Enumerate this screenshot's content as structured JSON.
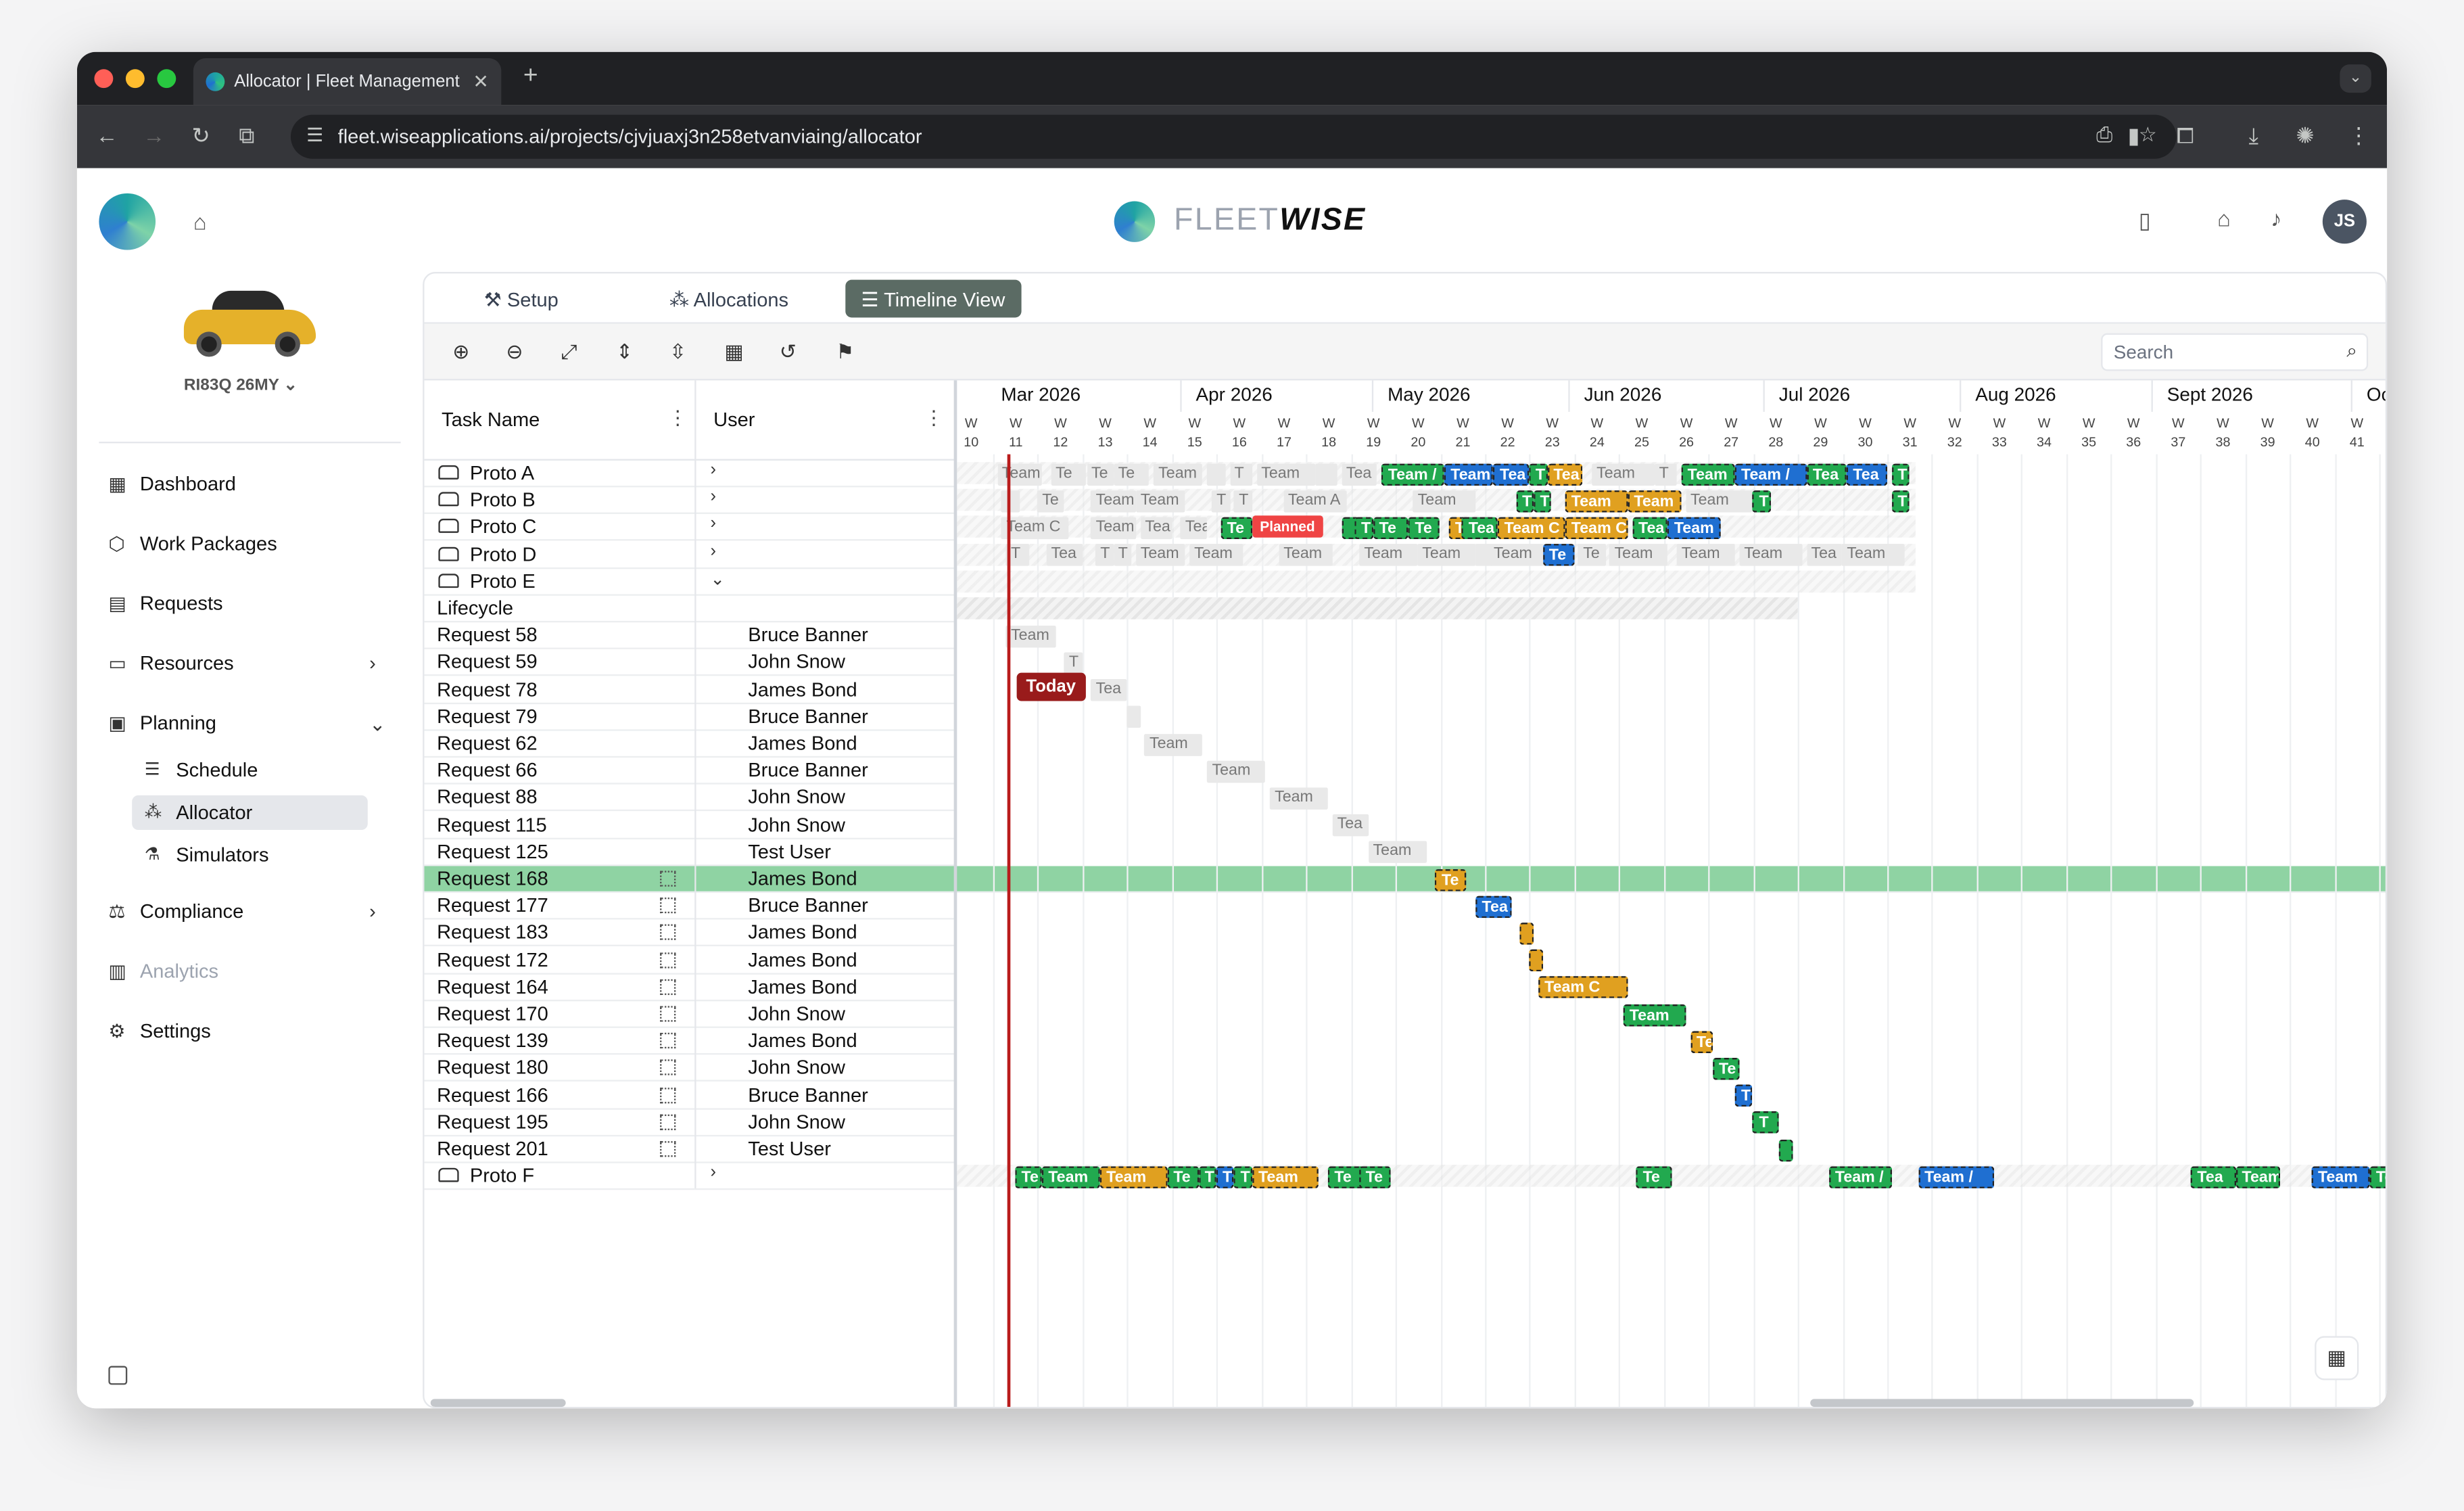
{
  "browser": {
    "tab_title": "Allocator | Fleet Management",
    "url": "fleet.wiseapplications.ai/projects/cjvjuaxj3n258etvanviaing/allocator"
  },
  "header": {
    "brand_light": "FLEET",
    "brand_bold": "WISE",
    "avatar_initials": "JS"
  },
  "vehicle": {
    "name": "RI83Q 26MY"
  },
  "sidebar": {
    "items": [
      {
        "label": "Dashboard",
        "icon": "grid-icon"
      },
      {
        "label": "Work Packages",
        "icon": "package-icon"
      },
      {
        "label": "Requests",
        "icon": "clipboard-icon"
      },
      {
        "label": "Resources",
        "icon": "folder-icon"
      },
      {
        "label": "Planning",
        "icon": "calendar-icon"
      },
      {
        "label": "Compliance",
        "icon": "scale-icon"
      },
      {
        "label": "Analytics",
        "icon": "chart-icon"
      },
      {
        "label": "Settings",
        "icon": "gear-icon"
      }
    ],
    "planning_sub": [
      {
        "label": "Schedule",
        "icon": "gantt-icon"
      },
      {
        "label": "Allocator",
        "icon": "allocator-icon",
        "active": true
      },
      {
        "label": "Simulators",
        "icon": "flask-icon"
      }
    ]
  },
  "tabs": [
    {
      "label": "Setup",
      "icon": "wrench-icon"
    },
    {
      "label": "Allocations",
      "icon": "allocations-icon"
    },
    {
      "label": "Timeline View",
      "icon": "timeline-icon",
      "active": true
    }
  ],
  "toolbar": {
    "search_placeholder": "Search"
  },
  "grid": {
    "col_task": "Task Name",
    "col_user": "User",
    "rows": [
      {
        "task": "Proto A",
        "user": "",
        "type": "proto"
      },
      {
        "task": "Proto B",
        "user": "",
        "type": "proto"
      },
      {
        "task": "Proto C",
        "user": "",
        "type": "proto"
      },
      {
        "task": "Proto D",
        "user": "",
        "type": "proto"
      },
      {
        "task": "Proto E",
        "user": "",
        "type": "proto-open"
      },
      {
        "task": "Lifecycle",
        "user": "",
        "type": "plain"
      },
      {
        "task": "Request 58",
        "user": "Bruce Banner",
        "type": "req"
      },
      {
        "task": "Request 59",
        "user": "John Snow",
        "type": "req"
      },
      {
        "task": "Request 78",
        "user": "James Bond",
        "type": "req"
      },
      {
        "task": "Request 79",
        "user": "Bruce Banner",
        "type": "req"
      },
      {
        "task": "Request 62",
        "user": "James Bond",
        "type": "req"
      },
      {
        "task": "Request 66",
        "user": "Bruce Banner",
        "type": "req"
      },
      {
        "task": "Request 88",
        "user": "John Snow",
        "type": "req"
      },
      {
        "task": "Request 115",
        "user": "John Snow",
        "type": "req"
      },
      {
        "task": "Request 125",
        "user": "Test User",
        "type": "req"
      },
      {
        "task": "Request 168",
        "user": "James Bond",
        "type": "req-h",
        "selected": true
      },
      {
        "task": "Request 177",
        "user": "Bruce Banner",
        "type": "req-h"
      },
      {
        "task": "Request 183",
        "user": "James Bond",
        "type": "req-h"
      },
      {
        "task": "Request 172",
        "user": "James Bond",
        "type": "req-h"
      },
      {
        "task": "Request 164",
        "user": "James Bond",
        "type": "req-h"
      },
      {
        "task": "Request 170",
        "user": "John Snow",
        "type": "req-h"
      },
      {
        "task": "Request 139",
        "user": "James Bond",
        "type": "req-h"
      },
      {
        "task": "Request 180",
        "user": "John Snow",
        "type": "req-h"
      },
      {
        "task": "Request 166",
        "user": "Bruce Banner",
        "type": "req-h"
      },
      {
        "task": "Request 195",
        "user": "John Snow",
        "type": "req-h"
      },
      {
        "task": "Request 201",
        "user": "Test User",
        "type": "req-h"
      },
      {
        "task": "Proto F",
        "user": "",
        "type": "proto"
      }
    ]
  },
  "timeline": {
    "months": [
      "Mar 2026",
      "Apr 2026",
      "May 2026",
      "Jun 2026",
      "Jul 2026",
      "Aug 2026",
      "Sept 2026",
      "Oc"
    ],
    "week_prefix": "W",
    "weeks": [
      "10",
      "11",
      "12",
      "13",
      "14",
      "15",
      "16",
      "17",
      "18",
      "19",
      "20",
      "21",
      "22",
      "23",
      "24",
      "25",
      "26",
      "27",
      "28",
      "29",
      "30",
      "31",
      "32",
      "33",
      "34",
      "35",
      "36",
      "37",
      "38",
      "39",
      "40",
      "41"
    ],
    "today_label": "Today",
    "planned_label": "Planned",
    "colors": {
      "green": "#22a94f",
      "blue": "#1f6fd1",
      "orange": "#e0a020",
      "today": "#991b1b",
      "planned": "#ef4444",
      "selected_row": "#8fd3a3"
    },
    "rows": {
      "0": [
        [
          "g",
          "Team",
          "0.9",
          "1"
        ],
        [
          "g",
          "Te",
          "2.1",
          "0.8"
        ],
        [
          "g",
          "Te",
          "2.9",
          "0.6"
        ],
        [
          "g",
          "Te",
          "3.5",
          "0.8"
        ],
        [
          "g",
          "Team",
          "4.4",
          "1.1"
        ],
        [
          "g",
          "",
          "5.6",
          "0.4"
        ],
        [
          "g",
          "T",
          "6.1",
          "0.5"
        ],
        [
          "g",
          "Team",
          "6.7",
          "1.3"
        ],
        [
          "g",
          "",
          "8",
          "0.5"
        ],
        [
          "g",
          "Tea",
          "8.6",
          "0.8"
        ],
        [
          "G",
          "Team /",
          "9.5",
          "1.4"
        ],
        [
          "B",
          "Team",
          "10.9",
          "1.1"
        ],
        [
          "B",
          "Tea",
          "12",
          "0.8"
        ],
        [
          "G",
          "T",
          "12.8",
          "0.4"
        ],
        [
          "O",
          "Tea",
          "13.2",
          "0.8"
        ],
        [
          "g",
          "Team",
          "14.2",
          "1.4"
        ],
        [
          "g",
          "T",
          "15.6",
          "0.5"
        ],
        [
          "G",
          "Team",
          "16.2",
          "1.2"
        ],
        [
          "B",
          "Team /",
          "17.4",
          "1.6"
        ],
        [
          "G",
          "Tea",
          "19",
          "0.9"
        ],
        [
          "B",
          "Tea",
          "19.9",
          "0.9"
        ],
        [
          "G",
          "T",
          "20.9",
          "0.4"
        ]
      ],
      "1": [
        [
          "g",
          "",
          "1",
          "0.4"
        ],
        [
          "g",
          "Te",
          "1.8",
          "0.6"
        ],
        [
          "g",
          "Team",
          "3",
          "1"
        ],
        [
          "g",
          "Team",
          "4",
          "1.1"
        ],
        [
          "g",
          "T",
          "5.7",
          "0.4"
        ],
        [
          "g",
          "T",
          "6.2",
          "0.4"
        ],
        [
          "g",
          "Team A",
          "7.3",
          "1.4"
        ],
        [
          "g",
          "Team",
          "10.2",
          "1.4"
        ],
        [
          "G",
          "T",
          "12.5",
          "0.4"
        ],
        [
          "G",
          "T",
          "12.9",
          "0.4"
        ],
        [
          "O",
          "Team",
          "13.6",
          "1.4"
        ],
        [
          "O",
          "Team",
          "15",
          "1.2"
        ],
        [
          "g",
          "Team",
          "16.3",
          "1.5"
        ],
        [
          "G",
          "T",
          "17.8",
          "0.4"
        ],
        [
          "G",
          "T",
          "20.9",
          "0.4"
        ]
      ],
      "2": [
        [
          "g",
          "Team C",
          "1",
          "1.5"
        ],
        [
          "g",
          "Team",
          "3",
          "1"
        ],
        [
          "g",
          "Tea",
          "4.1",
          "0.7"
        ],
        [
          "g",
          "Tea",
          "5",
          "0.6"
        ],
        [
          "G",
          "Te",
          "5.9",
          "0.7"
        ],
        [
          "G",
          "",
          "8.6",
          "0.4"
        ],
        [
          "G",
          "T",
          "8.9",
          "0.4"
        ],
        [
          "G",
          "Te",
          "9.3",
          "0.8"
        ],
        [
          "G",
          "Te",
          "10.1",
          "0.7"
        ],
        [
          "O",
          "T",
          "11",
          "0.4"
        ],
        [
          "G",
          "Tea",
          "11.3",
          "0.8"
        ],
        [
          "O",
          "Team C",
          "12.1",
          "1.5"
        ],
        [
          "O",
          "Team C",
          "13.6",
          "1.4"
        ],
        [
          "G",
          "Tea",
          "15.1",
          "0.8"
        ],
        [
          "B",
          "Team",
          "15.9",
          "1.2"
        ]
      ],
      "3": [
        [
          "g",
          "T",
          "1.1",
          "0.5"
        ],
        [
          "g",
          "Tea",
          "2",
          "0.8"
        ],
        [
          "g",
          "T",
          "3.1",
          "0.4"
        ],
        [
          "g",
          "T",
          "3.5",
          "0.4"
        ],
        [
          "g",
          "Team",
          "4",
          "1.1"
        ],
        [
          "g",
          "Team",
          "5.2",
          "1.2"
        ],
        [
          "g",
          "Team",
          "7.2",
          "1.2"
        ],
        [
          "g",
          "Team",
          "9",
          "1.3"
        ],
        [
          "g",
          "Team",
          "10.3",
          "1.3"
        ],
        [
          "g",
          "",
          "11.6",
          "0.4"
        ],
        [
          "g",
          "Team",
          "11.9",
          "1.2"
        ],
        [
          "B",
          "Te",
          "13.1",
          "0.7"
        ],
        [
          "g",
          "Te",
          "13.9",
          "0.6"
        ],
        [
          "g",
          "Team",
          "14.6",
          "1.3"
        ],
        [
          "g",
          "Team",
          "16.1",
          "1.3"
        ],
        [
          "g",
          "Team",
          "17.5",
          "1.4"
        ],
        [
          "g",
          "Tea",
          "19",
          "0.8"
        ],
        [
          "g",
          "Team",
          "19.8",
          "1.4"
        ]
      ],
      "6": [
        [
          "g",
          "Team",
          "1.1",
          "1.1"
        ]
      ],
      "7": [
        [
          "g",
          "T",
          "2.4",
          "0.4"
        ]
      ],
      "8": [
        [
          "g",
          "Tea",
          "3",
          "0.8"
        ]
      ],
      "9": [
        [
          "g",
          "",
          "3.8",
          "0.3"
        ]
      ],
      "10": [
        [
          "g",
          "Team",
          "4.2",
          "1.3"
        ]
      ],
      "11": [
        [
          "g",
          "Team",
          "5.6",
          "1.3"
        ]
      ],
      "12": [
        [
          "g",
          "Team",
          "7",
          "1.3"
        ]
      ],
      "13": [
        [
          "g",
          "Tea",
          "8.4",
          "0.8"
        ]
      ],
      "14": [
        [
          "g",
          "Team",
          "9.2",
          "1.3"
        ]
      ],
      "15": [
        [
          "O",
          "Te",
          "10.7",
          "0.7"
        ]
      ],
      "16": [
        [
          "B",
          "Tea",
          "11.6",
          "0.8"
        ]
      ],
      "17": [
        [
          "O",
          "",
          "12.6",
          "0.3"
        ]
      ],
      "18": [
        [
          "O",
          "",
          "12.8",
          "0.3"
        ]
      ],
      "19": [
        [
          "O",
          "Team C",
          "13",
          "2"
        ]
      ],
      "20": [
        [
          "G",
          "Team",
          "14.9",
          "1.4"
        ]
      ],
      "21": [
        [
          "O",
          "Te",
          "16.4",
          "0.5"
        ]
      ],
      "22": [
        [
          "G",
          "Te",
          "16.9",
          "0.6"
        ]
      ],
      "23": [
        [
          "B",
          "T",
          "17.4",
          "0.4"
        ]
      ],
      "24": [
        [
          "G",
          "T",
          "17.8",
          "0.6"
        ]
      ],
      "25": [
        [
          "G",
          "",
          "18.4",
          "0.3"
        ]
      ],
      "26": [
        [
          "G",
          "Te",
          "1.3",
          "0.6"
        ],
        [
          "G",
          "Team",
          "1.9",
          "1.3"
        ],
        [
          "O",
          "Team",
          "3.2",
          "1.5"
        ],
        [
          "G",
          "Te",
          "4.7",
          "0.7"
        ],
        [
          "G",
          "T",
          "5.4",
          "0.4"
        ],
        [
          "B",
          "T",
          "5.8",
          "0.4"
        ],
        [
          "G",
          "T",
          "6.2",
          "0.4"
        ],
        [
          "O",
          "Team",
          "6.6",
          "1.5"
        ],
        [
          "G",
          "Te",
          "8.3",
          "0.8"
        ],
        [
          "G",
          "Te",
          "9",
          "0.7"
        ],
        [
          "G",
          "Te",
          "15.2",
          "0.8"
        ],
        [
          "G",
          "Team /",
          "19.5",
          "1.4"
        ],
        [
          "B",
          "Team /",
          "21.5",
          "1.7"
        ],
        [
          "G",
          "Tea",
          "27.6",
          "1"
        ],
        [
          "G",
          "Team",
          "28.6",
          "1"
        ],
        [
          "B",
          "Team",
          "30.3",
          "1.3"
        ],
        [
          "G",
          "Tea",
          "31.6",
          "0.8"
        ]
      ]
    }
  }
}
